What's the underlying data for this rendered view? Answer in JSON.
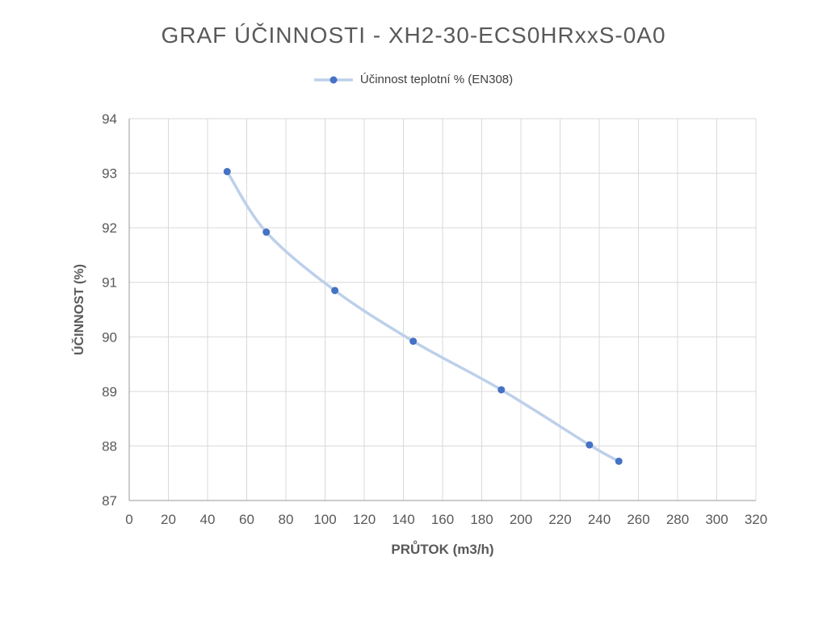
{
  "chart_data": {
    "type": "line",
    "title": "GRAF ÚČINNOSTI - XH2-30-ECS0HRxxS-0A0",
    "xlabel": "PRŮTOK (m3/h)",
    "ylabel": "ÚČINNOST (%)",
    "xlim": [
      0,
      320
    ],
    "ylim": [
      87,
      94
    ],
    "x_ticks": [
      0,
      20,
      40,
      60,
      80,
      100,
      120,
      140,
      160,
      180,
      200,
      220,
      240,
      260,
      280,
      300,
      320
    ],
    "y_ticks": [
      87,
      88,
      89,
      90,
      91,
      92,
      93,
      94
    ],
    "grid": true,
    "legend_position": "top",
    "series": [
      {
        "name": "Účinnost teplotní % (EN308)",
        "x": [
          50,
          70,
          105,
          145,
          190,
          235,
          250
        ],
        "y": [
          93.03,
          91.92,
          90.85,
          89.92,
          89.03,
          88.02,
          87.72
        ],
        "line_color": "#bdd0ea",
        "marker_color": "#4472c4",
        "smooth": true
      }
    ],
    "colors": {
      "title_text": "#595959",
      "tick_text": "#595959",
      "axis_title_text": "#595959",
      "gridline": "#d9d9d9",
      "axis_line": "#999999",
      "background": "#ffffff"
    }
  }
}
